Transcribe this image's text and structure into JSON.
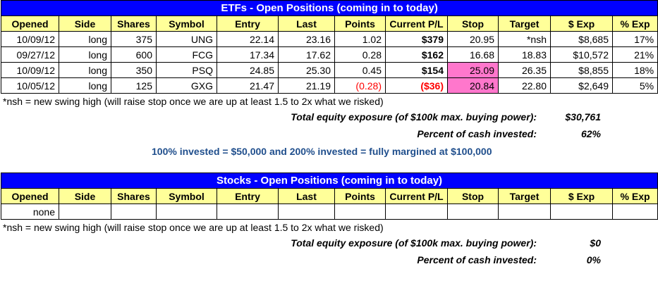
{
  "columns": [
    "Opened",
    "Side",
    "Shares",
    "Symbol",
    "Entry",
    "Last",
    "Points",
    "Current P/L",
    "Stop",
    "Target",
    "$ Exp",
    "% Exp"
  ],
  "etfs": {
    "title": "ETFs - Open Positions (coming in to today)",
    "rows": [
      {
        "opened": "10/09/12",
        "side": "long",
        "shares": "375",
        "symbol": "UNG",
        "entry": "22.14",
        "last": "23.16",
        "points": "1.02",
        "pl": "$379",
        "stop": "20.95",
        "target": "*nsh",
        "exp": "$8,685",
        "pct": "17%"
      },
      {
        "opened": "09/27/12",
        "side": "long",
        "shares": "600",
        "symbol": "FCG",
        "entry": "17.34",
        "last": "17.62",
        "points": "0.28",
        "pl": "$162",
        "stop": "16.68",
        "target": "18.83",
        "exp": "$10,572",
        "pct": "21%"
      },
      {
        "opened": "10/09/12",
        "side": "long",
        "shares": "350",
        "symbol": "PSQ",
        "entry": "24.85",
        "last": "25.30",
        "points": "0.45",
        "pl": "$154",
        "stop": "25.09",
        "target": "26.35",
        "exp": "$8,855",
        "pct": "18%"
      },
      {
        "opened": "10/05/12",
        "side": "long",
        "shares": "125",
        "symbol": "GXG",
        "entry": "21.47",
        "last": "21.19",
        "points": "(0.28)",
        "pl": "($36)",
        "stop": "20.84",
        "target": "22.80",
        "exp": "$2,649",
        "pct": "5%"
      }
    ],
    "note": "*nsh = new swing high (will raise stop once we are up at least 1.5 to 2x what we risked)",
    "exposure_label": "Total equity exposure (of $100k max. buying power):",
    "exposure_value": "$30,761",
    "percent_label": "Percent of cash invested:",
    "percent_value": "62%",
    "invest_note": "100% invested = $50,000 and 200% invested = fully margined at $100,000"
  },
  "stocks": {
    "title": "Stocks - Open Positions (coming in to today)",
    "rows": [
      {
        "opened": "none",
        "side": "",
        "shares": "",
        "symbol": "",
        "entry": "",
        "last": "",
        "points": "",
        "pl": "",
        "stop": "",
        "target": "",
        "exp": "",
        "pct": ""
      }
    ],
    "note": "*nsh = new swing high (will raise stop once we are up at least 1.5 to 2x what we risked)",
    "exposure_label": "Total equity exposure (of $100k max. buying power):",
    "exposure_value": "$0",
    "percent_label": "Percent of cash invested:",
    "percent_value": "0%"
  },
  "colors": {
    "title_bg": "#0000FF",
    "header_bg": "#FFFF99",
    "stop_highlight": "#FF77CC",
    "negative": "#FF0000",
    "invest_text": "#1F4E8C"
  }
}
